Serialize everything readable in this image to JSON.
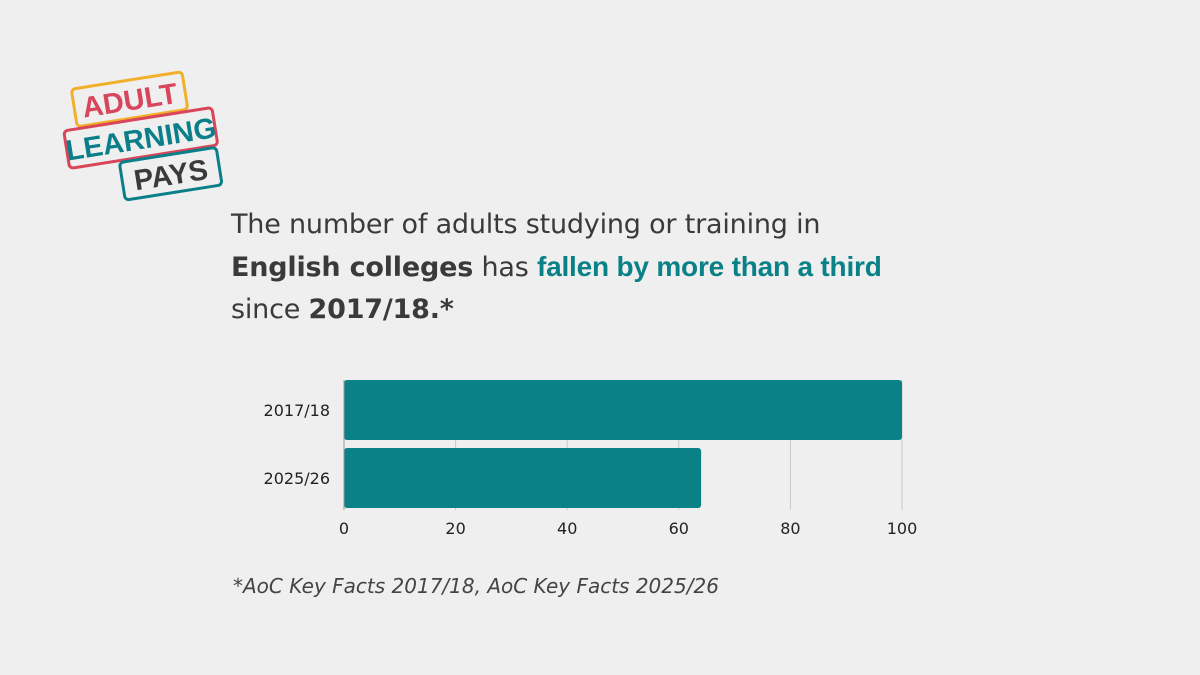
{
  "colors": {
    "background": "#efefef",
    "bar": "#0a8087",
    "accent": "#0a8087",
    "logo_yellow": "#f2b02a",
    "logo_red": "#d9455b",
    "logo_teal": "#0a7f8a",
    "text": "#3a3a3a"
  },
  "logo": {
    "line1": "ADULT",
    "line2": "LEARNING",
    "line3": "PAYS"
  },
  "headline": {
    "part1": "The number of adults studying or training in",
    "bold1": "English colleges",
    "part2": " has ",
    "accent": "fallen by more than a third",
    "part3": "since ",
    "bold2": "2017/18.*"
  },
  "footnote": "*AoC Key Facts 2017/18, AoC Key Facts 2025/26",
  "chart_data": {
    "type": "bar",
    "orientation": "horizontal",
    "categories": [
      "2017/18",
      "2025/26"
    ],
    "values": [
      100,
      64
    ],
    "xlim": [
      0,
      100
    ],
    "xticks": [
      0,
      20,
      40,
      60,
      80,
      100
    ],
    "grid": true,
    "title": "",
    "xlabel": "",
    "ylabel": ""
  }
}
